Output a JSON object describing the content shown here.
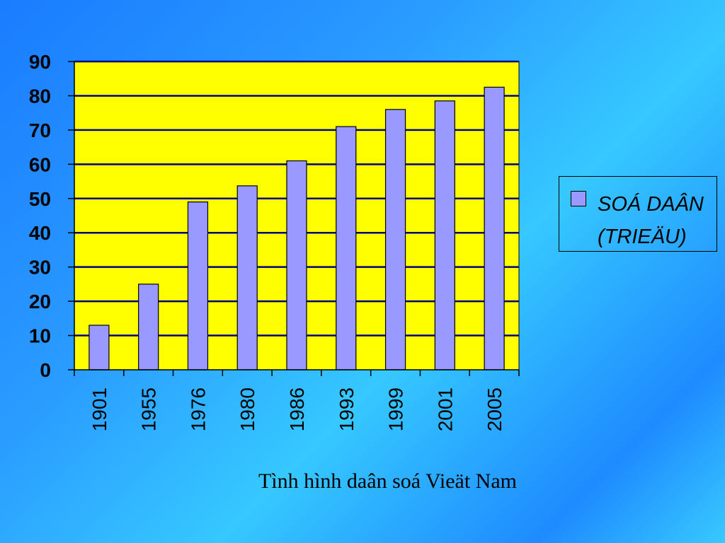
{
  "chart_data": {
    "type": "bar",
    "categories": [
      "1901",
      "1955",
      "1976",
      "1980",
      "1986",
      "1993",
      "1999",
      "2001",
      "2005"
    ],
    "series": [
      {
        "name": "SOÁ DAÂN (TRIEÄU)",
        "values": [
          13,
          25,
          49,
          53.7,
          61,
          71,
          76,
          78.5,
          82.5
        ]
      }
    ],
    "ylim": [
      0,
      90
    ],
    "yticks": [
      0,
      10,
      20,
      30,
      40,
      50,
      60,
      70,
      80,
      90
    ],
    "grid": true,
    "legend_position": "right",
    "plot_background": "#ffff00",
    "bar_color": "#9999ff",
    "gridline_color": "#000080"
  },
  "legend": {
    "label": "SOÁ DAÂN (TRIEÄU)"
  },
  "caption": "Tình hình daân soá Vieät Nam"
}
